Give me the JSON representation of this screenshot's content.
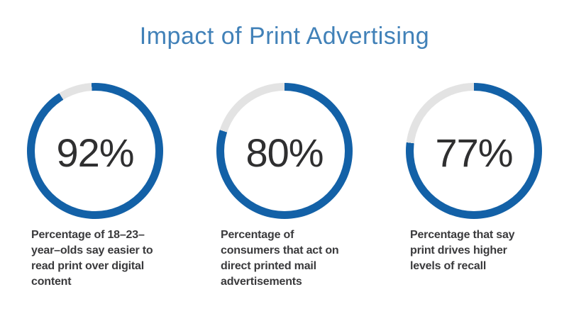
{
  "title": "Impact of Print Advertising",
  "colors": {
    "ring_blue": "#1361A7",
    "ring_gray": "#E3E3E3",
    "title_blue": "#4181B8",
    "caption_gray": "#3A3A3C",
    "value_gray": "#2F2F30",
    "background": "#FFFFFF"
  },
  "chart_data": {
    "type": "pie",
    "variant": "donut-progress",
    "title": "Impact of Print Advertising",
    "legend": false,
    "colors": {
      "value_arc": "#1361A7",
      "remainder_arc": "#E3E3E3"
    },
    "charts": [
      {
        "value": 92,
        "remainder": 8,
        "unit": "%",
        "label": "Percentage of 18–23–year–olds say easier to read print over digital content"
      },
      {
        "value": 80,
        "remainder": 20,
        "unit": "%",
        "label": "Percentage of consumers that act on direct printed mail advertisements"
      },
      {
        "value": 77,
        "remainder": 23,
        "unit": "%",
        "label": "Percentage that say print drives higher levels of recall"
      }
    ]
  },
  "stats": [
    {
      "value_label": "92%",
      "percent": 92,
      "rotation_deg": -3,
      "caption": "Percentage of 18–23–\nyear–olds say easier to\nread print over digital\ncontent"
    },
    {
      "value_label": "80%",
      "percent": 80,
      "rotation_deg": 0,
      "caption": "Percentage of\nconsumers that act on\ndirect printed mail\nadvertisements"
    },
    {
      "value_label": "77%",
      "percent": 77,
      "rotation_deg": 0,
      "caption": "Percentage that say\nprint drives higher\nlevels of recall"
    }
  ]
}
